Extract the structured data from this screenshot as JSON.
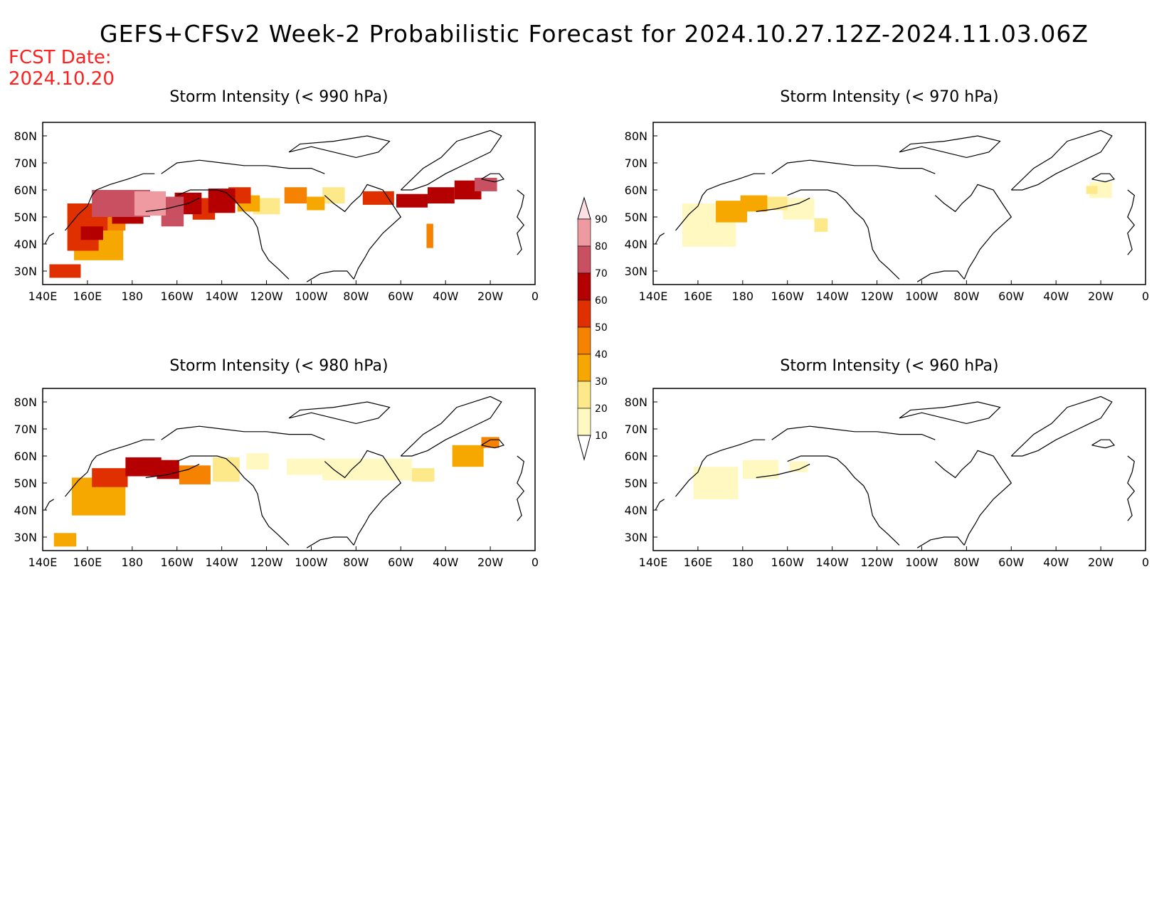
{
  "title": "GEFS+CFSv2 Week-2 Probabilistic Forecast for 2024.10.27.12Z-2024.11.03.06Z",
  "fcst_date_label": "FCST Date:",
  "fcst_date": "2024.10.20",
  "colors": {
    "level_10": "#fff8c0",
    "level_20": "#fde98a",
    "level_30": "#f7a800",
    "level_40": "#f58200",
    "level_50": "#e03000",
    "level_60": "#b40000",
    "level_70": "#c85060",
    "level_80": "#ee9aa0",
    "level_90": "#fde0e4",
    "title_red": "#ff2020"
  },
  "colorbar": {
    "labels": [
      "10",
      "20",
      "30",
      "40",
      "50",
      "60",
      "70",
      "80",
      "90"
    ]
  },
  "axes": {
    "x_ticks": [
      "140E",
      "160E",
      "180",
      "160W",
      "140W",
      "120W",
      "100W",
      "80W",
      "60W",
      "40W",
      "20W",
      "0"
    ],
    "y_ticks": [
      "80N",
      "70N",
      "60N",
      "50N",
      "40N",
      "30N"
    ]
  },
  "panels": [
    {
      "title": "Storm Intensity (< 990 hPa)",
      "blobs": [
        {
          "lon": 150,
          "lat": 30,
          "w": 14,
          "h": 5,
          "level": 5
        },
        {
          "lon": 158,
          "lat": 42,
          "w": 14,
          "h": 9,
          "level": 5
        },
        {
          "lon": 160,
          "lat": 50,
          "w": 18,
          "h": 10,
          "level": 5
        },
        {
          "lon": 162,
          "lat": 44,
          "w": 10,
          "h": 5,
          "level": 6
        },
        {
          "lon": 165,
          "lat": 40,
          "w": 22,
          "h": 12,
          "level": 3
        },
        {
          "lon": 172,
          "lat": 48,
          "w": 10,
          "h": 6,
          "level": 4
        },
        {
          "lon": 175,
          "lat": 55,
          "w": 26,
          "h": 10,
          "level": 7
        },
        {
          "lon": 178,
          "lat": 50,
          "w": 14,
          "h": 5,
          "level": 6
        },
        {
          "lon": 188,
          "lat": 55,
          "w": 14,
          "h": 9,
          "level": 8
        },
        {
          "lon": 198,
          "lat": 52,
          "w": 10,
          "h": 11,
          "level": 7
        },
        {
          "lon": 205,
          "lat": 55,
          "w": 12,
          "h": 8,
          "level": 6
        },
        {
          "lon": 212,
          "lat": 53,
          "w": 10,
          "h": 8,
          "level": 5
        },
        {
          "lon": 220,
          "lat": 56,
          "w": 12,
          "h": 9,
          "level": 6
        },
        {
          "lon": 228,
          "lat": 58,
          "w": 10,
          "h": 6,
          "level": 5
        },
        {
          "lon": 232,
          "lat": 55,
          "w": 10,
          "h": 6,
          "level": 3
        },
        {
          "lon": 240,
          "lat": 54,
          "w": 12,
          "h": 6,
          "level": 2
        },
        {
          "lon": 253,
          "lat": 58,
          "w": 10,
          "h": 6,
          "level": 4
        },
        {
          "lon": 262,
          "lat": 55,
          "w": 8,
          "h": 5,
          "level": 3
        },
        {
          "lon": 270,
          "lat": 58,
          "w": 10,
          "h": 6,
          "level": 2
        },
        {
          "lon": 290,
          "lat": 57,
          "w": 14,
          "h": 5,
          "level": 5
        },
        {
          "lon": 305,
          "lat": 56,
          "w": 14,
          "h": 5,
          "level": 6
        },
        {
          "lon": 318,
          "lat": 58,
          "w": 12,
          "h": 6,
          "level": 6
        },
        {
          "lon": 330,
          "lat": 60,
          "w": 12,
          "h": 7,
          "level": 6
        },
        {
          "lon": 338,
          "lat": 62,
          "w": 10,
          "h": 5,
          "level": 7
        },
        {
          "lon": 313,
          "lat": 43,
          "w": 3,
          "h": 9,
          "level": 4
        }
      ]
    },
    {
      "title": "Storm Intensity (< 970 hPa)",
      "blobs": [
        {
          "lon": 165,
          "lat": 47,
          "w": 24,
          "h": 16,
          "level": 1
        },
        {
          "lon": 175,
          "lat": 52,
          "w": 14,
          "h": 8,
          "level": 3
        },
        {
          "lon": 185,
          "lat": 55,
          "w": 12,
          "h": 6,
          "level": 3
        },
        {
          "lon": 195,
          "lat": 55,
          "w": 10,
          "h": 5,
          "level": 2
        },
        {
          "lon": 205,
          "lat": 53,
          "w": 14,
          "h": 8,
          "level": 1
        },
        {
          "lon": 215,
          "lat": 47,
          "w": 6,
          "h": 5,
          "level": 2
        },
        {
          "lon": 340,
          "lat": 60,
          "w": 10,
          "h": 6,
          "level": 1
        },
        {
          "lon": 336,
          "lat": 60,
          "w": 5,
          "h": 3,
          "level": 2
        }
      ]
    },
    {
      "title": "Storm Intensity (< 980 hPa)",
      "blobs": [
        {
          "lon": 150,
          "lat": 29,
          "w": 10,
          "h": 5,
          "level": 3
        },
        {
          "lon": 165,
          "lat": 45,
          "w": 24,
          "h": 14,
          "level": 3
        },
        {
          "lon": 170,
          "lat": 52,
          "w": 16,
          "h": 7,
          "level": 5
        },
        {
          "lon": 185,
          "lat": 56,
          "w": 16,
          "h": 7,
          "level": 6
        },
        {
          "lon": 196,
          "lat": 55,
          "w": 10,
          "h": 7,
          "level": 6
        },
        {
          "lon": 208,
          "lat": 53,
          "w": 14,
          "h": 7,
          "level": 4
        },
        {
          "lon": 222,
          "lat": 55,
          "w": 12,
          "h": 9,
          "level": 2
        },
        {
          "lon": 236,
          "lat": 58,
          "w": 10,
          "h": 6,
          "level": 1
        },
        {
          "lon": 258,
          "lat": 56,
          "w": 18,
          "h": 6,
          "level": 1
        },
        {
          "lon": 285,
          "lat": 55,
          "w": 40,
          "h": 8,
          "level": 1
        },
        {
          "lon": 310,
          "lat": 53,
          "w": 10,
          "h": 5,
          "level": 2
        },
        {
          "lon": 330,
          "lat": 60,
          "w": 14,
          "h": 8,
          "level": 3
        },
        {
          "lon": 340,
          "lat": 65,
          "w": 8,
          "h": 4,
          "level": 4
        }
      ]
    },
    {
      "title": "Storm Intensity (< 960 hPa)",
      "blobs": [
        {
          "lon": 168,
          "lat": 50,
          "w": 20,
          "h": 12,
          "level": 1
        },
        {
          "lon": 188,
          "lat": 55,
          "w": 16,
          "h": 7,
          "level": 1
        },
        {
          "lon": 205,
          "lat": 56,
          "w": 8,
          "h": 4,
          "level": 1
        }
      ]
    }
  ]
}
